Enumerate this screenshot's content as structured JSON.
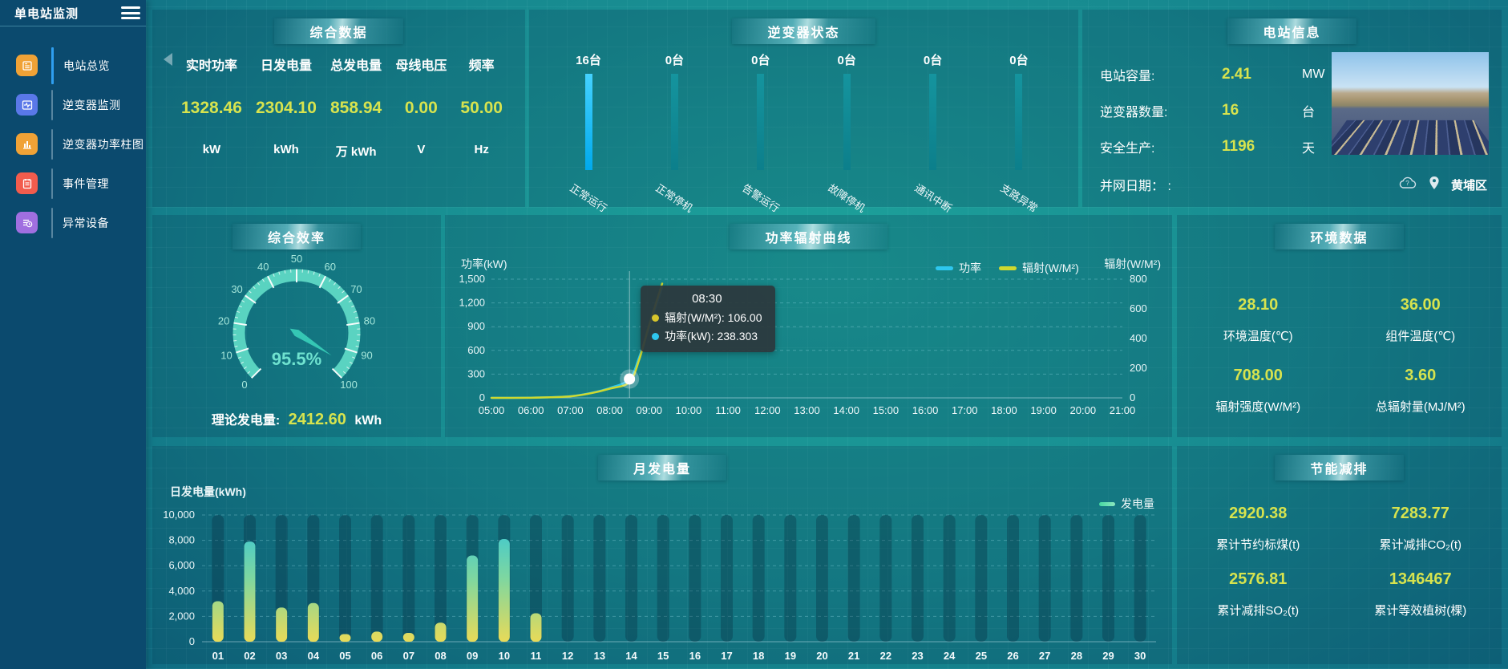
{
  "app": {
    "title": "单电站监测"
  },
  "sidebar": {
    "items": [
      {
        "label": "电站总览",
        "icon": "station-overview-icon",
        "color": "#f0a236",
        "active": true
      },
      {
        "label": "逆变器监测",
        "icon": "inverter-monitor-icon",
        "color": "#5a78e8",
        "active": false
      },
      {
        "label": "逆变器功率柱图",
        "icon": "power-bar-chart-icon",
        "color": "#f0a236",
        "active": false
      },
      {
        "label": "事件管理",
        "icon": "event-management-icon",
        "color": "#f25c4d",
        "active": false
      },
      {
        "label": "异常设备",
        "icon": "abnormal-device-icon",
        "color": "#a06fe0",
        "active": false
      }
    ]
  },
  "summary": {
    "title": "综合数据",
    "metrics": [
      {
        "label": "实时功率",
        "value": "1328.46",
        "unit": "kW"
      },
      {
        "label": "日发电量",
        "value": "2304.10",
        "unit": "kWh"
      },
      {
        "label": "总发电量",
        "value": "858.94",
        "unit": "万  kWh"
      },
      {
        "label": "母线电压",
        "value": "0.00",
        "unit": "V"
      },
      {
        "label": "频率",
        "value": "50.00",
        "unit": "Hz"
      }
    ]
  },
  "inverter_status": {
    "title": "逆变器状态"
  },
  "station_info": {
    "title": "电站信息",
    "rows": [
      {
        "label": "电站容量:",
        "value": "2.41",
        "unit": "MW",
        "muted": false
      },
      {
        "label": "逆变器数量:",
        "value": "16",
        "unit": "台",
        "muted": false
      },
      {
        "label": "安全生产:",
        "value": "1196",
        "unit": "天",
        "muted": false
      }
    ],
    "footer_label": "并网日期： :",
    "location": "黄埔区"
  },
  "efficiency": {
    "title": "综合效率",
    "footer_label": "理论发电量:",
    "footer_value": "2412.60",
    "footer_unit": "kWh"
  },
  "power_curve": {
    "title": "功率辐射曲线"
  },
  "environment": {
    "title": "环境数据",
    "metrics": [
      {
        "value": "28.10",
        "label": "环境温度(℃)"
      },
      {
        "value": "36.00",
        "label": "组件温度(℃)"
      },
      {
        "value": "708.00",
        "label": "辐射强度(W/M²)"
      },
      {
        "value": "3.60",
        "label": "总辐射量(MJ/M²)"
      }
    ]
  },
  "monthly": {
    "title": "月发电量"
  },
  "saving": {
    "title": "节能减排",
    "metrics": [
      {
        "value": "2920.38",
        "label": "累计节约标煤(t)"
      },
      {
        "value": "7283.77",
        "label": "累计减排CO₂(t)"
      },
      {
        "value": "2576.81",
        "label": "累计减排SO₂(t)"
      },
      {
        "value": "1346467",
        "label": "累计等效植树(棵)"
      }
    ]
  },
  "colors": {
    "value_yellow": "#d7e34e",
    "gauge_teal": "#5ed8c4",
    "gauge_needle": "#35c7b4",
    "gauge_label": "#a5e6da",
    "status_bar_active_top": "#45d2ff",
    "status_bar_active_bottom": "#00a9ec",
    "status_bar_idle": "#0f8d96",
    "power_line": "#2ec7ef",
    "radiation_line": "#cfd92f",
    "bar_gradient_bottom": "#e8da58",
    "bar_gradient_mid": "#7ed7a0",
    "bar_gradient_top": "#2fc4dc",
    "legend_energy_mark": "#45d8a2"
  },
  "chart_data": [
    {
      "id": "inverter_status_bars",
      "type": "bar",
      "title": "逆变器状态",
      "categories": [
        "正常运行",
        "正常停机",
        "告警运行",
        "故障停机",
        "通讯中断",
        "支路异常"
      ],
      "values": [
        16,
        0,
        0,
        0,
        0,
        0
      ],
      "unit": "台"
    },
    {
      "id": "efficiency_gauge",
      "type": "gauge",
      "title": "综合效率",
      "value": 95.5,
      "display": "95.5%",
      "min": 0,
      "max": 100,
      "major_ticks": [
        0,
        10,
        20,
        30,
        40,
        50,
        60,
        70,
        80,
        90,
        100
      ]
    },
    {
      "id": "power_radiation_curve",
      "type": "line",
      "title": "功率辐射曲线",
      "xticks": [
        "05:00",
        "06:00",
        "07:00",
        "08:00",
        "09:00",
        "10:00",
        "11:00",
        "12:00",
        "13:00",
        "14:00",
        "15:00",
        "16:00",
        "17:00",
        "18:00",
        "19:00",
        "20:00",
        "21:00"
      ],
      "x_range": [
        5,
        21
      ],
      "left_axis": {
        "label": "功率(kW)",
        "ticks": [
          0,
          300,
          600,
          900,
          1200,
          1500
        ],
        "max": 1500
      },
      "right_axis": {
        "label": "辐射(W/M²)",
        "ticks": [
          0,
          200,
          400,
          600,
          800
        ],
        "max": 800
      },
      "legend": [
        "功率",
        "辐射(W/M²)"
      ],
      "series": [
        {
          "name": "功率",
          "axis": "left",
          "color": "#2ec7ef",
          "points": [
            [
              5,
              0
            ],
            [
              5.5,
              0
            ],
            [
              6,
              3
            ],
            [
              6.5,
              8
            ],
            [
              7,
              20
            ],
            [
              7.5,
              60
            ],
            [
              8,
              125
            ],
            [
              8.5,
              238.303
            ],
            [
              8.75,
              520
            ],
            [
              9,
              900
            ],
            [
              9.33,
              1400
            ]
          ]
        },
        {
          "name": "辐射(W/M²)",
          "axis": "right",
          "color": "#cfd92f",
          "points": [
            [
              5,
              0
            ],
            [
              5.5,
              0
            ],
            [
              6,
              1
            ],
            [
              6.5,
              4
            ],
            [
              7,
              10
            ],
            [
              7.5,
              30
            ],
            [
              8,
              62
            ],
            [
              8.5,
              106
            ],
            [
              8.75,
              260
            ],
            [
              9,
              490
            ],
            [
              9.33,
              770
            ]
          ]
        }
      ],
      "tooltip": {
        "x": 8.5,
        "time": "08:30",
        "rows": [
          {
            "name": "辐射(W/M²)",
            "value": "106.00",
            "color": "#d8c62c"
          },
          {
            "name": "功率(kW)",
            "value": "238.303",
            "color": "#2ec7ef"
          }
        ]
      }
    },
    {
      "id": "monthly_energy",
      "type": "bar",
      "title": "月发电量",
      "ylabel": "日发电量(kWh)",
      "legend": "发电量",
      "categories": [
        "01",
        "02",
        "03",
        "04",
        "05",
        "06",
        "07",
        "08",
        "09",
        "10",
        "11",
        "12",
        "13",
        "14",
        "15",
        "16",
        "17",
        "18",
        "19",
        "20",
        "21",
        "22",
        "23",
        "24",
        "25",
        "26",
        "27",
        "28",
        "29",
        "30"
      ],
      "values": [
        3200,
        7900,
        2700,
        3050,
        600,
        800,
        700,
        1500,
        6800,
        8100,
        2250,
        0,
        0,
        0,
        0,
        0,
        0,
        0,
        0,
        0,
        0,
        0,
        0,
        0,
        0,
        0,
        0,
        0,
        0,
        0
      ],
      "yticks": [
        0,
        2000,
        4000,
        6000,
        8000,
        10000
      ],
      "ylim": [
        0,
        10000
      ]
    }
  ]
}
